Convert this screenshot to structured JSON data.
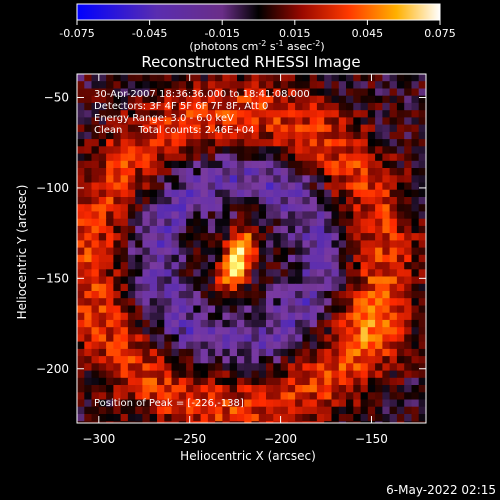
{
  "colorbar": {
    "ticks": [
      "-0.075",
      "-0.045",
      "-0.015",
      "0.015",
      "0.045",
      "0.075"
    ],
    "values": [
      -0.075,
      -0.045,
      -0.015,
      0.015,
      0.045,
      0.075
    ],
    "range": [
      -0.075,
      0.075
    ],
    "unit_prefix": "(photons cm",
    "unit_exp1": "-2",
    "unit_mid": " s",
    "unit_exp2": "-1",
    "unit_mid2": " asec",
    "unit_exp3": "-2",
    "unit_suffix": ")"
  },
  "chart_data": {
    "type": "heatmap",
    "title": "Reconstructed RHESSI Image",
    "xlabel": "Heliocentric X (arcsec)",
    "ylabel": "Heliocentric Y (arcsec)",
    "xlim": [
      -312,
      -120
    ],
    "ylim": [
      -230,
      -37
    ],
    "x_ticks": [
      -300,
      -250,
      -200,
      -150
    ],
    "x_tick_labels": [
      "−300",
      "−250",
      "−200",
      "−150"
    ],
    "y_ticks": [
      -50,
      -100,
      -150,
      -200
    ],
    "y_tick_labels": [
      "−50",
      "−100",
      "−150",
      "−200"
    ],
    "peak": {
      "x": -226,
      "y": -138
    },
    "annotations": [
      "30-Apr-2007 18:36:36.000 to 18:41:08.000",
      "Detectors: 3F 4F 5F 6F 7F 8F, Att 0",
      "Energy Range: 3.0 - 6.0 keV",
      "Clean     Total counts: 2.46E+04"
    ],
    "peak_label": "Position of Peak = [-226,-138]",
    "colormap": [
      "#1010ff",
      "#5a2db0",
      "#7a3aa0",
      "#000000",
      "#8a0a00",
      "#ff2a00",
      "#ff9a00",
      "#ffff80",
      "#ffffff"
    ]
  },
  "footer": {
    "timestamp": "6-May-2022 02:15"
  }
}
